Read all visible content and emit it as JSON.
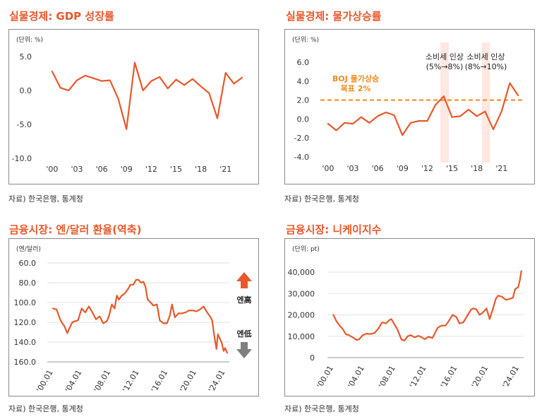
{
  "source_text": "자료) 한국은행, 통계청",
  "colors": {
    "line": "#e8582a",
    "title": "#e8582a",
    "boj": "#f08a1a",
    "shade": "#fde8e2",
    "arrow_up": "#e8582a",
    "arrow_down": "#7f7f7f"
  },
  "chart_data": [
    {
      "type": "line",
      "title": "실물경제: GDP 성장률",
      "unit": "(단위: %)",
      "x_tick_labels": [
        "'00",
        "'03",
        "'06",
        "'09",
        "'12",
        "'15",
        "'18",
        "'21"
      ],
      "x_ticks": [
        2000,
        2003,
        2006,
        2009,
        2012,
        2015,
        2018,
        2021
      ],
      "y_tick_labels": [
        "5.0",
        "0.0",
        "-5.0",
        "-10.0"
      ],
      "y_ticks": [
        5,
        0,
        -5,
        -10
      ],
      "xlim": [
        1999.5,
        2023.5
      ],
      "ylim": [
        -10,
        5
      ],
      "series": [
        {
          "x": [
            2000,
            2001,
            2002,
            2003,
            2004,
            2005,
            2006,
            2007,
            2008,
            2009,
            2010,
            2011,
            2012,
            2013,
            2014,
            2015,
            2016,
            2017,
            2018,
            2019,
            2020,
            2021,
            2022,
            2023
          ],
          "values": [
            2.8,
            0.4,
            0.0,
            1.5,
            2.2,
            1.8,
            1.4,
            1.5,
            -1.2,
            -5.7,
            4.1,
            0.0,
            1.4,
            2.0,
            0.3,
            1.6,
            0.8,
            1.7,
            0.6,
            -0.4,
            -4.1,
            2.6,
            1.0,
            1.9
          ]
        }
      ]
    },
    {
      "type": "line",
      "title": "실물경제: 물가상승률",
      "unit": "(단위: %)",
      "x_tick_labels": [
        "'00",
        "'03",
        "'06",
        "'09",
        "'12",
        "'15",
        "'18",
        "'21"
      ],
      "x_ticks": [
        2000,
        2003,
        2006,
        2009,
        2012,
        2015,
        2018,
        2021
      ],
      "y_tick_labels": [
        "6.0",
        "4.0",
        "2.0",
        "0.0",
        "-2.0",
        "-4.0"
      ],
      "y_ticks": [
        6,
        4,
        2,
        0,
        -2,
        -4
      ],
      "xlim": [
        1999.5,
        2023.5
      ],
      "ylim": [
        -4,
        6
      ],
      "target_line": {
        "value": 2.0,
        "label_lines": [
          "BOJ 물가상승",
          "목표 2%"
        ]
      },
      "shaded_periods": [
        {
          "from": 2013.6,
          "to": 2014.6,
          "label_lines": [
            "소비세 인상",
            "(5%→8%)"
          ]
        },
        {
          "from": 2018.6,
          "to": 2019.6,
          "label_lines": [
            "소비세 인상",
            "(8%→10%)"
          ]
        }
      ],
      "series": [
        {
          "x": [
            2000,
            2001,
            2002,
            2003,
            2004,
            2005,
            2006,
            2007,
            2008,
            2009,
            2010,
            2011,
            2012,
            2013,
            2014,
            2015,
            2016,
            2017,
            2018,
            2019,
            2020,
            2021,
            2022,
            2023
          ],
          "values": [
            -0.5,
            -1.2,
            -0.4,
            -0.5,
            0.2,
            -0.4,
            0.3,
            0.7,
            0.4,
            -1.7,
            -0.4,
            -0.2,
            -0.2,
            1.5,
            2.4,
            0.2,
            0.3,
            1.0,
            0.3,
            0.8,
            -1.1,
            0.8,
            3.8,
            2.5
          ]
        }
      ]
    },
    {
      "type": "line",
      "title": "금융시장: 엔/달러 환율(역축)",
      "unit": "(엔/달러)",
      "x_tick_labels": [
        "'00.01",
        "'04.01",
        "'08.01",
        "'12.01",
        "'16.01",
        "'20.01",
        "'24.01"
      ],
      "x_ticks": [
        2000,
        2004,
        2008,
        2012,
        2016,
        2020,
        2024
      ],
      "y_tick_labels": [
        "60.0",
        "80.0",
        "100.0",
        "120.0",
        "140.0",
        "160.0"
      ],
      "y_ticks": [
        60,
        80,
        100,
        120,
        140,
        160
      ],
      "xlim": [
        1999.6,
        2024.6
      ],
      "ylim": [
        60,
        160
      ],
      "y_inverted": true,
      "side_labels": {
        "up": "엔高",
        "down": "엔低"
      },
      "series": [
        {
          "x": [
            2000.0,
            2000.5,
            2001.0,
            2001.3,
            2001.6,
            2002.0,
            2002.3,
            2002.7,
            2003.0,
            2003.5,
            2004.0,
            2004.5,
            2005.0,
            2005.5,
            2006.0,
            2006.5,
            2007.0,
            2007.5,
            2007.8,
            2008.2,
            2008.6,
            2008.9,
            2009.2,
            2009.6,
            2010.0,
            2010.5,
            2010.8,
            2011.2,
            2011.6,
            2011.9,
            2012.3,
            2012.6,
            2012.9,
            2013.2,
            2013.5,
            2014.0,
            2014.5,
            2014.9,
            2015.4,
            2015.9,
            2016.3,
            2016.6,
            2017.0,
            2017.5,
            2018.0,
            2018.5,
            2019.0,
            2019.5,
            2020.0,
            2020.5,
            2021.0,
            2021.5,
            2021.9,
            2022.2,
            2022.5,
            2022.8,
            2023.0,
            2023.5,
            2023.8,
            2024.0,
            2024.3
          ],
          "values": [
            106,
            107,
            117,
            121,
            124,
            131,
            126,
            120,
            119,
            118,
            106,
            110,
            104,
            110,
            117,
            114,
            121,
            119,
            114,
            102,
            106,
            93,
            97,
            93,
            91,
            86,
            82,
            82,
            77,
            77,
            80,
            79,
            84,
            97,
            99,
            103,
            102,
            118,
            121,
            121,
            113,
            102,
            115,
            111,
            111,
            110,
            108,
            108,
            109,
            107,
            104,
            110,
            114,
            118,
            134,
            147,
            132,
            140,
            149,
            146,
            151
          ]
        }
      ]
    },
    {
      "type": "line",
      "title": "금융시장: 니케이지수",
      "unit": "(단위: pt)",
      "x_tick_labels": [
        "'00.01",
        "'04.01",
        "'08.01",
        "'12.01",
        "'16.01",
        "'20.01",
        "'24.01"
      ],
      "x_ticks": [
        2000,
        2004,
        2008,
        2012,
        2016,
        2020,
        2024
      ],
      "y_tick_labels": [
        "40,000",
        "30,000",
        "20,000",
        "10,000",
        "0"
      ],
      "y_ticks": [
        40000,
        30000,
        20000,
        10000,
        0
      ],
      "xlim": [
        1999.6,
        2024.6
      ],
      "ylim": [
        0,
        40000
      ],
      "series": [
        {
          "x": [
            2000.0,
            2000.4,
            2000.8,
            2001.2,
            2001.6,
            2002.0,
            2002.5,
            2003.0,
            2003.3,
            2003.8,
            2004.3,
            2004.8,
            2005.3,
            2005.8,
            2006.3,
            2006.8,
            2007.2,
            2007.5,
            2007.9,
            2008.3,
            2008.8,
            2009.2,
            2009.6,
            2010.0,
            2010.5,
            2011.0,
            2011.4,
            2011.8,
            2012.3,
            2012.8,
            2013.2,
            2013.5,
            2014.0,
            2014.5,
            2014.9,
            2015.4,
            2015.9,
            2016.3,
            2016.8,
            2017.3,
            2017.8,
            2018.1,
            2018.5,
            2018.9,
            2019.3,
            2019.8,
            2020.2,
            2020.6,
            2021.0,
            2021.3,
            2021.8,
            2022.3,
            2022.8,
            2023.2,
            2023.5,
            2023.9,
            2024.1,
            2024.3
          ],
          "values": [
            20000,
            17000,
            15000,
            13500,
            11000,
            10500,
            9500,
            8300,
            8500,
            10500,
            11200,
            11000,
            11500,
            13500,
            16500,
            16000,
            17500,
            18000,
            15500,
            13000,
            8500,
            8000,
            10000,
            10500,
            9500,
            10200,
            9600,
            8600,
            9800,
            9200,
            12000,
            14000,
            15000,
            15000,
            17000,
            20000,
            19000,
            16000,
            16500,
            19500,
            22500,
            23000,
            22500,
            20000,
            21000,
            23000,
            18000,
            22500,
            27500,
            29000,
            28500,
            27000,
            27500,
            28000,
            32000,
            33000,
            36000,
            40500
          ]
        }
      ]
    }
  ]
}
